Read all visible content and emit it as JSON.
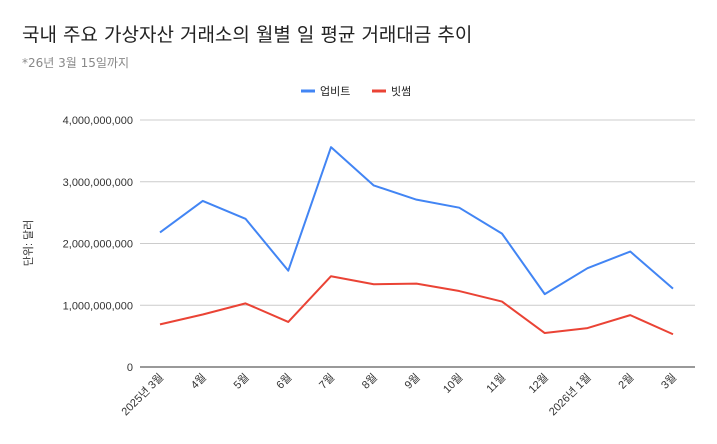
{
  "chart_data": {
    "type": "line",
    "title": "국내 주요 가상자산 거래소의 월별 일 평균 거래대금 추이",
    "subtitle": "*26년 3월 15일까지",
    "ylabel": "단위: 달러",
    "xlabel": "",
    "ylim": [
      0,
      4000000000
    ],
    "yticks": [
      "0",
      "1,000,000,000",
      "2,000,000,000",
      "3,000,000,000",
      "4,000,000,000"
    ],
    "grid": true,
    "legend_position": "top",
    "categories": [
      "2025년 3월",
      "4월",
      "5월",
      "6월",
      "7월",
      "8월",
      "9월",
      "10월",
      "11월",
      "12월",
      "2026년 1월",
      "2월",
      "3월"
    ],
    "series": [
      {
        "name": "업비트",
        "color": "#4285f4",
        "values": [
          2180000000,
          2690000000,
          2400000000,
          1560000000,
          3560000000,
          2940000000,
          2710000000,
          2580000000,
          2160000000,
          1180000000,
          1600000000,
          1870000000,
          1270000000
        ]
      },
      {
        "name": "빗썸",
        "color": "#ea4335",
        "values": [
          690000000,
          850000000,
          1030000000,
          730000000,
          1470000000,
          1340000000,
          1350000000,
          1230000000,
          1060000000,
          550000000,
          630000000,
          840000000,
          530000000
        ]
      }
    ]
  }
}
